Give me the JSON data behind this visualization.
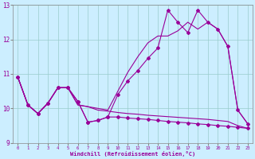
{
  "xlabel": "Windchill (Refroidissement éolien,°C)",
  "ylabel": "",
  "xlim": [
    -0.5,
    23.5
  ],
  "ylim": [
    9,
    13
  ],
  "yticks": [
    9,
    10,
    11,
    12,
    13
  ],
  "xticks": [
    0,
    1,
    2,
    3,
    4,
    5,
    6,
    7,
    8,
    9,
    10,
    11,
    12,
    13,
    14,
    15,
    16,
    17,
    18,
    19,
    20,
    21,
    22,
    23
  ],
  "background_color": "#cceeff",
  "line_color": "#990099",
  "grid_color": "#99cccc",
  "line1_marked": {
    "x": [
      0,
      1,
      2,
      3,
      4,
      5,
      6,
      7,
      8,
      9,
      10,
      11,
      12,
      13,
      14,
      15,
      16,
      17,
      18,
      19,
      20,
      21,
      22,
      23
    ],
    "y": [
      10.9,
      10.1,
      9.85,
      10.15,
      10.6,
      10.6,
      10.2,
      9.6,
      9.65,
      9.75,
      10.4,
      10.8,
      11.1,
      11.45,
      11.75,
      12.85,
      12.5,
      12.2,
      12.85,
      12.5,
      12.3,
      11.8,
      9.95,
      9.55
    ]
  },
  "line2_marked": {
    "x": [
      0,
      1,
      2,
      3,
      4,
      5,
      6,
      7,
      8,
      9,
      10,
      11,
      12,
      13,
      14,
      15,
      16,
      17,
      18,
      19,
      20,
      21,
      22,
      23
    ],
    "y": [
      10.9,
      10.1,
      9.85,
      10.15,
      10.6,
      10.6,
      10.2,
      9.6,
      9.65,
      9.75,
      9.75,
      9.72,
      9.7,
      9.68,
      9.65,
      9.62,
      9.6,
      9.58,
      9.55,
      9.53,
      9.5,
      9.48,
      9.45,
      9.42
    ]
  },
  "line3": {
    "x": [
      0,
      1,
      2,
      3,
      4,
      5,
      6,
      7,
      8,
      9,
      10,
      11,
      12,
      13,
      14,
      15,
      16,
      17,
      18,
      19,
      20,
      21,
      22,
      23
    ],
    "y": [
      10.9,
      10.1,
      9.85,
      10.15,
      10.6,
      10.6,
      10.1,
      10.05,
      10.0,
      9.95,
      10.5,
      11.05,
      11.5,
      11.9,
      12.1,
      12.1,
      12.25,
      12.5,
      12.3,
      12.5,
      12.3,
      11.8,
      9.95,
      9.55
    ]
  },
  "line4": {
    "x": [
      0,
      1,
      2,
      3,
      4,
      5,
      6,
      7,
      8,
      9,
      10,
      11,
      12,
      13,
      14,
      15,
      16,
      17,
      18,
      19,
      20,
      21,
      22,
      23
    ],
    "y": [
      10.9,
      10.1,
      9.85,
      10.15,
      10.6,
      10.6,
      10.1,
      10.05,
      9.95,
      9.92,
      9.88,
      9.85,
      9.83,
      9.8,
      9.78,
      9.76,
      9.74,
      9.72,
      9.7,
      9.68,
      9.65,
      9.62,
      9.5,
      9.42
    ]
  }
}
